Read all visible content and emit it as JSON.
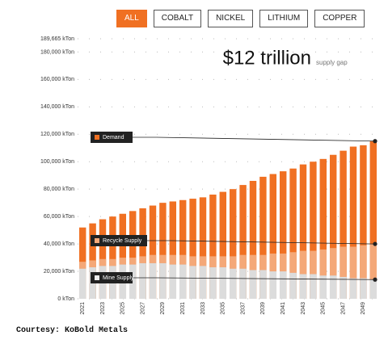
{
  "filters": [
    "ALL",
    "COBALT",
    "NICKEL",
    "LITHIUM",
    "COPPER"
  ],
  "active_filter": "ALL",
  "caption": "Courtesy: KoBold Metals",
  "chart_data": {
    "type": "bar",
    "headline": "$12 trillion",
    "headline_note": "supply gap",
    "categories": [
      "2021",
      null,
      "2023",
      null,
      "2025",
      null,
      "2027",
      null,
      "2029",
      null,
      "2031",
      null,
      "2033",
      null,
      "2035",
      null,
      "2037",
      null,
      "2039",
      null,
      "2041",
      null,
      "2043",
      null,
      "2045",
      null,
      "2047",
      null,
      "2049",
      null
    ],
    "series": [
      {
        "name": "Mine Supply",
        "color": "#dcdcdc",
        "values": [
          22000,
          23000,
          24000,
          24000,
          25000,
          25000,
          26000,
          26000,
          26000,
          25000,
          25000,
          24000,
          24000,
          23000,
          23000,
          22000,
          22000,
          21000,
          21000,
          20000,
          20000,
          19000,
          18000,
          18000,
          17000,
          17000,
          16000,
          15000,
          15000,
          14000
        ]
      },
      {
        "name": "Recycle Supply",
        "color": "#f4a878",
        "values": [
          5000,
          5000,
          5000,
          5000,
          5000,
          5000,
          5000,
          6000,
          6000,
          7000,
          7000,
          7000,
          7000,
          8000,
          8000,
          9000,
          10000,
          11000,
          11000,
          13000,
          13000,
          15000,
          17000,
          17000,
          19000,
          20000,
          22000,
          23000,
          24000,
          26000
        ]
      },
      {
        "name": "Demand",
        "color": "#f07022",
        "values": [
          52000,
          55000,
          58000,
          60000,
          62000,
          64000,
          66000,
          68000,
          70000,
          71000,
          72000,
          73000,
          74000,
          76000,
          78000,
          80000,
          83000,
          86000,
          89000,
          91000,
          93000,
          95000,
          98000,
          100000,
          102000,
          105000,
          108000,
          111000,
          112000,
          115000
        ]
      }
    ],
    "ylim": [
      0,
      189665
    ],
    "yticks": [
      {
        "value": 0,
        "label": "0 kTon"
      },
      {
        "value": 20000,
        "label": "20,000 kTon"
      },
      {
        "value": 40000,
        "label": "40,000 kTon"
      },
      {
        "value": 60000,
        "label": "60,000 kTon"
      },
      {
        "value": 80000,
        "label": "80,000 kTon"
      },
      {
        "value": 100000,
        "label": "100,000 kTon"
      },
      {
        "value": 120000,
        "label": "120,000 kTon"
      },
      {
        "value": 140000,
        "label": "140,000 kTon"
      },
      {
        "value": 160000,
        "label": "160,000 kTon"
      },
      {
        "value": 180000,
        "label": "180,000 kTon"
      },
      {
        "value": 189665,
        "label": "189,665 kTon"
      }
    ],
    "grid": true
  }
}
